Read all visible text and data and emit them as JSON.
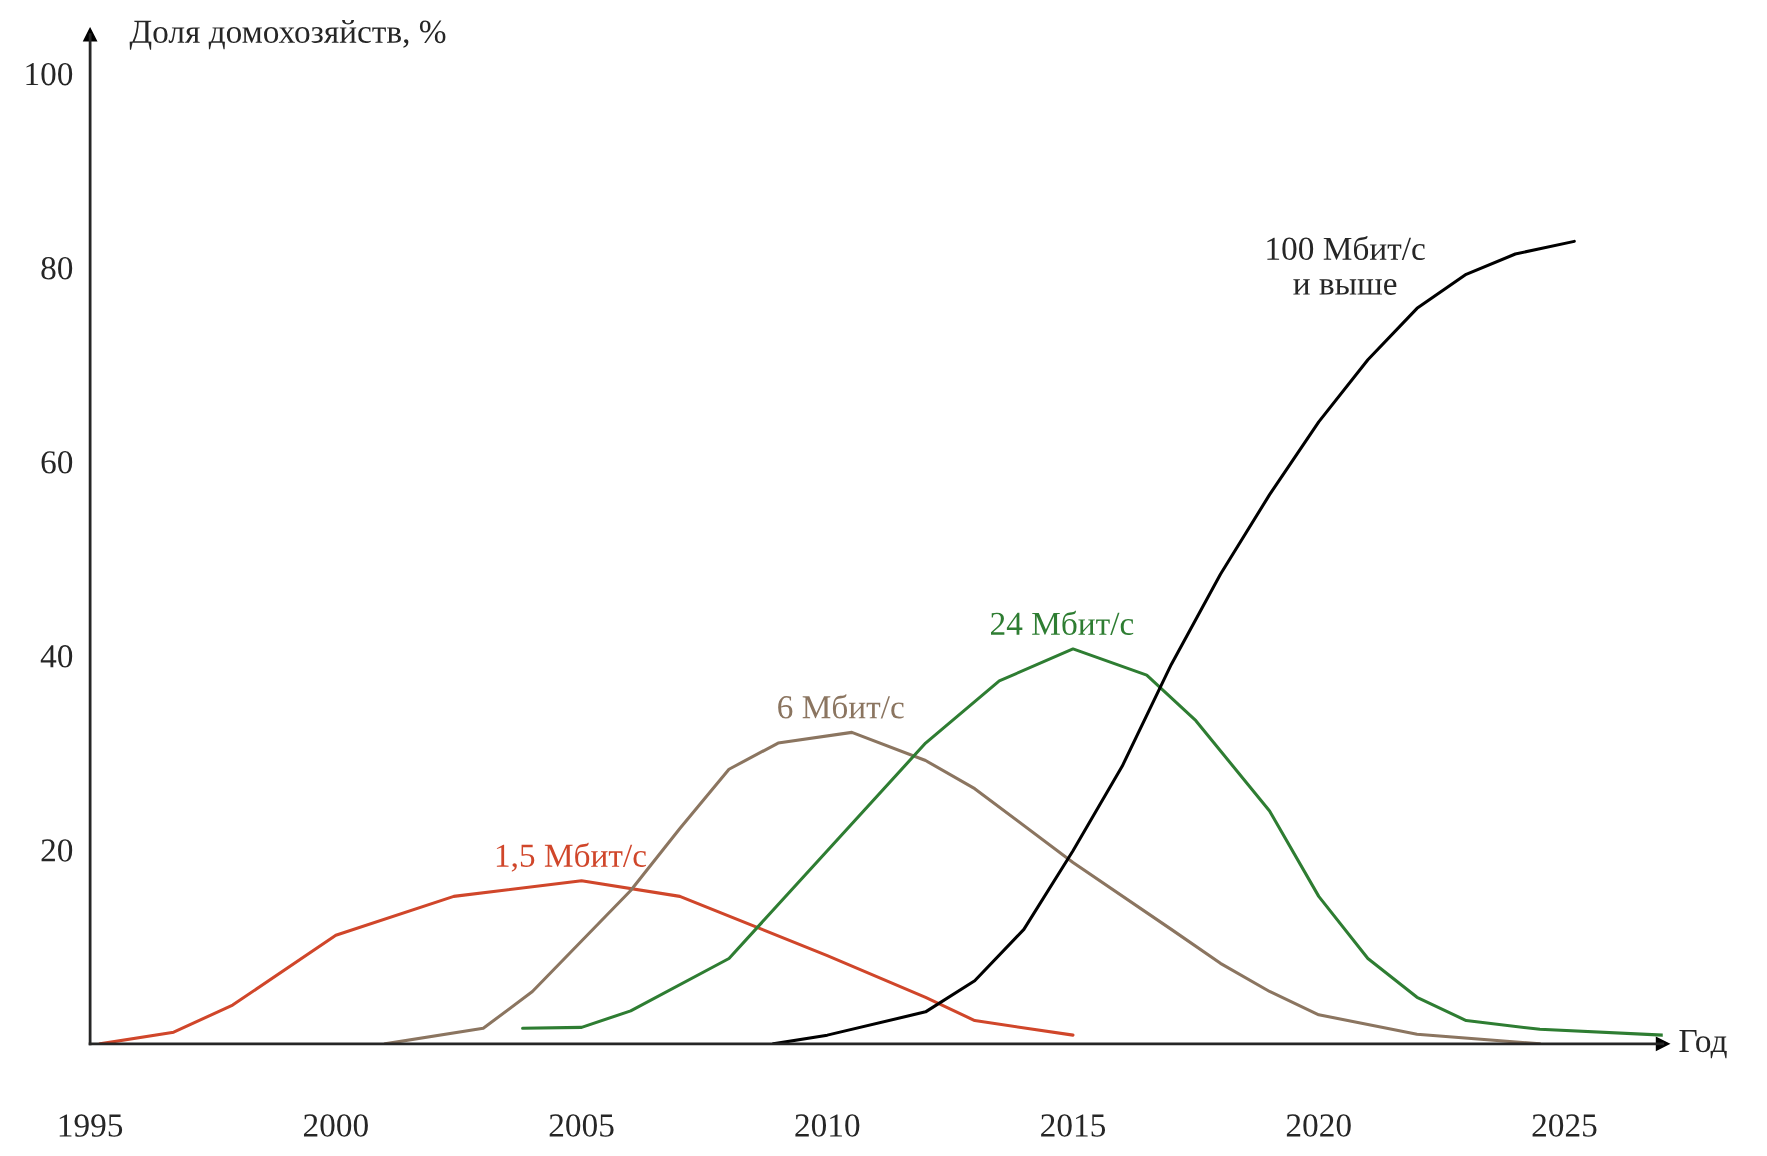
{
  "chart_data": {
    "type": "line",
    "ylabel": "Доля домохозяйств, %",
    "xlabel": "Год",
    "xlim": [
      1995,
      2027
    ],
    "xticks": [
      1995,
      2000,
      2005,
      2010,
      2015,
      2020,
      2025
    ],
    "ylim": [
      0,
      104
    ],
    "yticks": [
      20,
      40,
      60,
      80,
      100
    ],
    "grid": false,
    "legend": false,
    "marker": "none",
    "line_style": "solid",
    "series": [
      {
        "name": "1,5 Мбит/с",
        "color": "#d0462a",
        "x": [
          1995.2,
          1996.7,
          1997.9,
          2000,
          2002.4,
          2005,
          2007,
          2010,
          2012,
          2013,
          2015
        ],
        "values": [
          0,
          1.2,
          4,
          11.2,
          15.2,
          16.8,
          15.2,
          9.1,
          4.8,
          2.4,
          0.9
        ]
      },
      {
        "name": "6 Мбит/с",
        "color": "#8b7560",
        "x": [
          2001,
          2003,
          2004,
          2005,
          2006,
          2007,
          2008,
          2009,
          2010.5,
          2012,
          2013,
          2015,
          2017,
          2018,
          2019,
          2020,
          2022,
          2024.5
        ],
        "values": [
          0,
          1.6,
          5.4,
          10.6,
          15.8,
          22.2,
          28.3,
          31,
          32.1,
          29.2,
          26.3,
          18.7,
          11.8,
          8.3,
          5.4,
          3,
          1,
          0
        ]
      },
      {
        "name": "24 Мбит/с",
        "color": "#2e7d32",
        "x": [
          2003.8,
          2005,
          2006,
          2008,
          2010,
          2012,
          2013.5,
          2015,
          2016.5,
          2017.5,
          2019,
          2020,
          2021,
          2022,
          2023,
          2024.5,
          2027
        ],
        "values": [
          1.6,
          1.7,
          3.4,
          8.8,
          19.9,
          31,
          37.4,
          40.7,
          38,
          33.3,
          24,
          15.2,
          8.8,
          4.8,
          2.4,
          1.5,
          0.9
        ]
      },
      {
        "name": "100 Мбит/с\nи выше",
        "color": "#000000",
        "x": [
          2008.9,
          2010,
          2012,
          2013,
          2014,
          2015,
          2016,
          2017,
          2018,
          2019,
          2020,
          2021,
          2022,
          2023,
          2024,
          2025.2
        ],
        "values": [
          0,
          0.9,
          3.3,
          6.5,
          11.8,
          19.9,
          28.6,
          39.1,
          48.4,
          56.6,
          64.1,
          70.5,
          75.8,
          79.3,
          81.4,
          82.7
        ]
      }
    ]
  }
}
